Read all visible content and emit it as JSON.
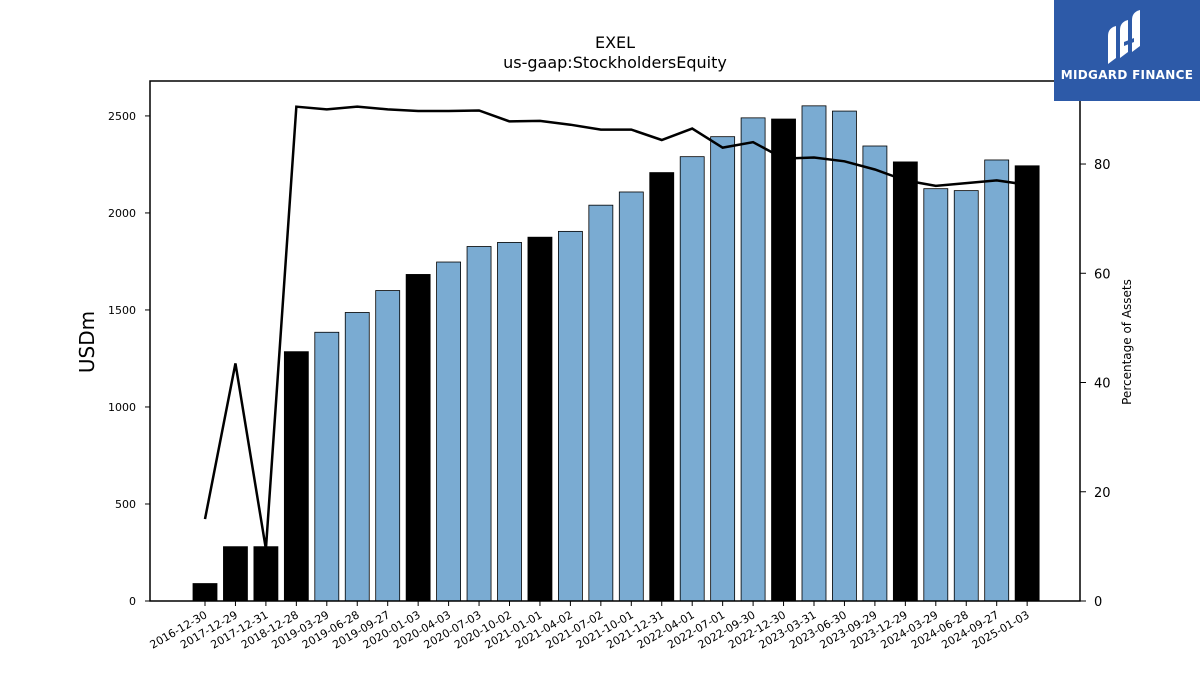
{
  "chart_data": {
    "type": "bar",
    "title": "EXEL",
    "subtitle": "us-gaap:StockholdersEquity",
    "ylabel": "USDm",
    "y2label": "Percentage of Assets",
    "ylim": [
      0,
      2680
    ],
    "y2lim": [
      0,
      95.2
    ],
    "yticks": [
      0,
      500,
      1000,
      1500,
      2000,
      2500
    ],
    "y2ticks": [
      0,
      20,
      40,
      60,
      80
    ],
    "categories": [
      "2016-12-30",
      "2017-12-29",
      "2017-12-31",
      "2018-12-28",
      "2019-03-29",
      "2019-06-28",
      "2019-09-27",
      "2020-01-03",
      "2020-04-03",
      "2020-07-03",
      "2020-10-02",
      "2021-01-01",
      "2021-04-02",
      "2021-07-02",
      "2021-10-01",
      "2021-12-31",
      "2022-04-01",
      "2022-07-01",
      "2022-09-30",
      "2022-12-30",
      "2023-03-31",
      "2023-06-30",
      "2023-09-29",
      "2023-12-29",
      "2024-03-29",
      "2024-06-28",
      "2024-09-27",
      "2025-01-03"
    ],
    "values": [
      90,
      280,
      280,
      1285,
      1385,
      1487,
      1600,
      1683,
      1747,
      1827,
      1848,
      1875,
      1905,
      2040,
      2108,
      2208,
      2290,
      2393,
      2490,
      2484,
      2552,
      2525,
      2345,
      2263,
      2125,
      2115,
      2273,
      2243
    ],
    "annual_flags": [
      1,
      1,
      1,
      1,
      0,
      0,
      0,
      1,
      0,
      0,
      0,
      1,
      0,
      0,
      0,
      1,
      0,
      0,
      0,
      1,
      0,
      0,
      0,
      1,
      0,
      0,
      0,
      1
    ],
    "pct_assets": [
      15,
      43.5,
      9.5,
      90.5,
      90,
      90.5,
      90,
      89.7,
      89.7,
      89.8,
      87.8,
      87.9,
      87.2,
      86.3,
      86.3,
      84.4,
      86.5,
      83,
      84,
      81,
      81.2,
      80.5,
      79,
      77,
      76,
      76.5,
      77,
      76.2
    ],
    "colors": {
      "annual": "#000000",
      "quarterly": "#7aabd2",
      "line": "#000000"
    }
  },
  "logo": {
    "text": "MIDGARD FINANCE",
    "bg": "#2d5aa8"
  }
}
